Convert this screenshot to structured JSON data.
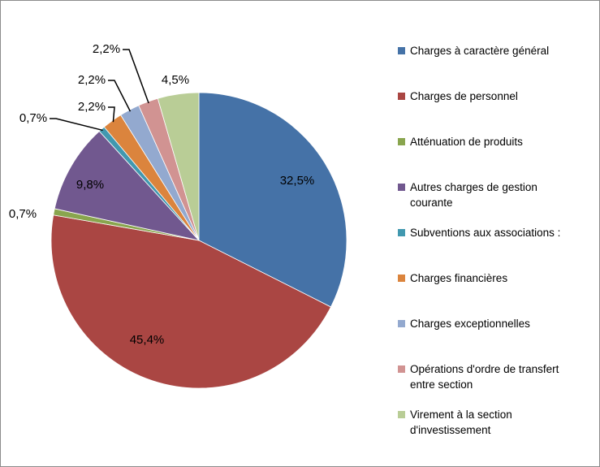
{
  "chart_data": {
    "type": "pie",
    "categories": [
      "Charges à caractère général",
      "Charges de personnel",
      "Atténuation de produits",
      "Autres charges de gestion courante",
      "Subventions aux associations :",
      "Charges financières",
      "Charges exceptionnelles",
      "Opérations d'ordre de transfert entre section",
      "Virement à la section d'investissement"
    ],
    "values": [
      32.5,
      45.4,
      0.7,
      9.8,
      0.7,
      2.2,
      2.2,
      2.2,
      4.5
    ],
    "value_labels": [
      "32,5%",
      "45,4%",
      "0,7%",
      "9,8%",
      "0,7%",
      "2,2%",
      "2,2%",
      "2,2%",
      "4,5%"
    ],
    "colors": [
      "#4572A7",
      "#AA4643",
      "#89A54E",
      "#71588F",
      "#4198AF",
      "#DB843D",
      "#93A9CF",
      "#D19392",
      "#B9CD96"
    ],
    "legend": "right"
  }
}
